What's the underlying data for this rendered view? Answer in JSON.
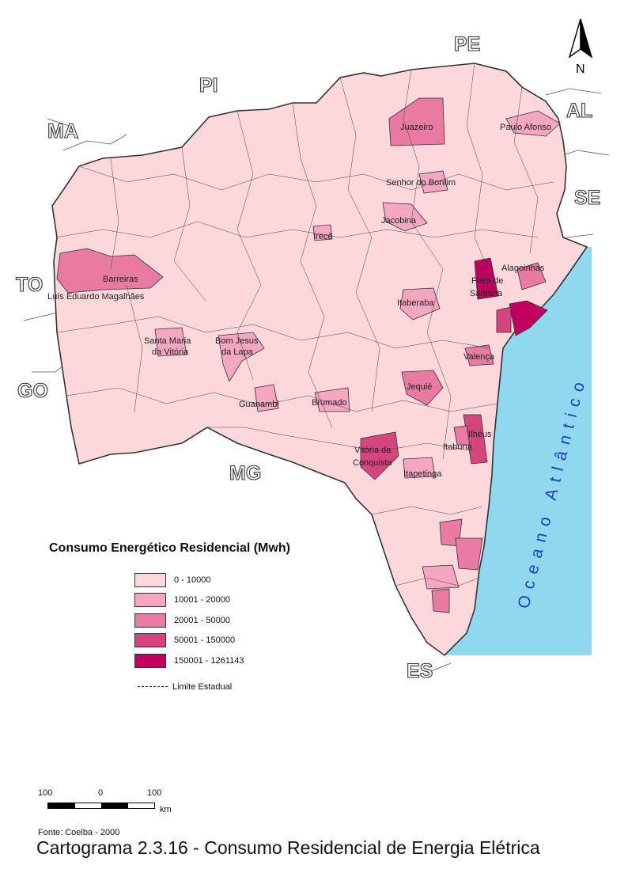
{
  "map": {
    "states": [
      {
        "name": "PE"
      },
      {
        "name": "PI"
      },
      {
        "name": "MA"
      },
      {
        "name": "AL"
      },
      {
        "name": "SE"
      },
      {
        "name": "TO"
      },
      {
        "name": "GO"
      },
      {
        "name": "MG"
      },
      {
        "name": "ES"
      }
    ],
    "cities": [
      {
        "name": "Juazeiro"
      },
      {
        "name": "Paulo Afonso"
      },
      {
        "name": "Senhor do Bonfim"
      },
      {
        "name": "Jacobina"
      },
      {
        "name": "Irecê"
      },
      {
        "name": "Alagoinhas"
      },
      {
        "name": "Barreiras"
      },
      {
        "name": "Luís Eduardo Magalhães"
      },
      {
        "name": "Feira de"
      },
      {
        "name": "Santana"
      },
      {
        "name": "Itaberaba"
      },
      {
        "name": "Santa Maria"
      },
      {
        "name": "da Vitória"
      },
      {
        "name": "Bom Jesus"
      },
      {
        "name": "da Lapa"
      },
      {
        "name": "Valença"
      },
      {
        "name": "Jequié"
      },
      {
        "name": "Guanambi"
      },
      {
        "name": "Brumado"
      },
      {
        "name": "Ilhéus"
      },
      {
        "name": "Itabuna"
      },
      {
        "name": "Vitória da"
      },
      {
        "name": "Conquista"
      },
      {
        "name": "Itapetinga"
      }
    ],
    "ocean_label": "Oceano Atlântico",
    "colors": {
      "ocean": "#8fd8f0",
      "class1": "#fcd8dc",
      "class2": "#f5a6c0",
      "class3": "#e97aa4",
      "class4": "#d6467e",
      "class5": "#c0005e",
      "border": "#333333"
    }
  },
  "north": {
    "letter": "N"
  },
  "legend": {
    "title": "Consumo Energético Residencial (Mwh)",
    "classes": [
      {
        "label": "0 - 10000",
        "color": "#fcd8dc"
      },
      {
        "label": "10001 - 20000",
        "color": "#f5a6c0"
      },
      {
        "label": "20001 - 50000",
        "color": "#e97aa4"
      },
      {
        "label": "50001 - 150000",
        "color": "#d6467e"
      },
      {
        "label": "150001 - 1261143",
        "color": "#c0005e"
      }
    ],
    "boundary_label": "Limite Estadual"
  },
  "scale": {
    "ticks": [
      "100",
      "0",
      "100"
    ],
    "unit": "km"
  },
  "source": "Fonte: Coelba - 2000",
  "caption": "Cartograma 2.3.16 - Consumo Residencial de Energia Elétrica"
}
